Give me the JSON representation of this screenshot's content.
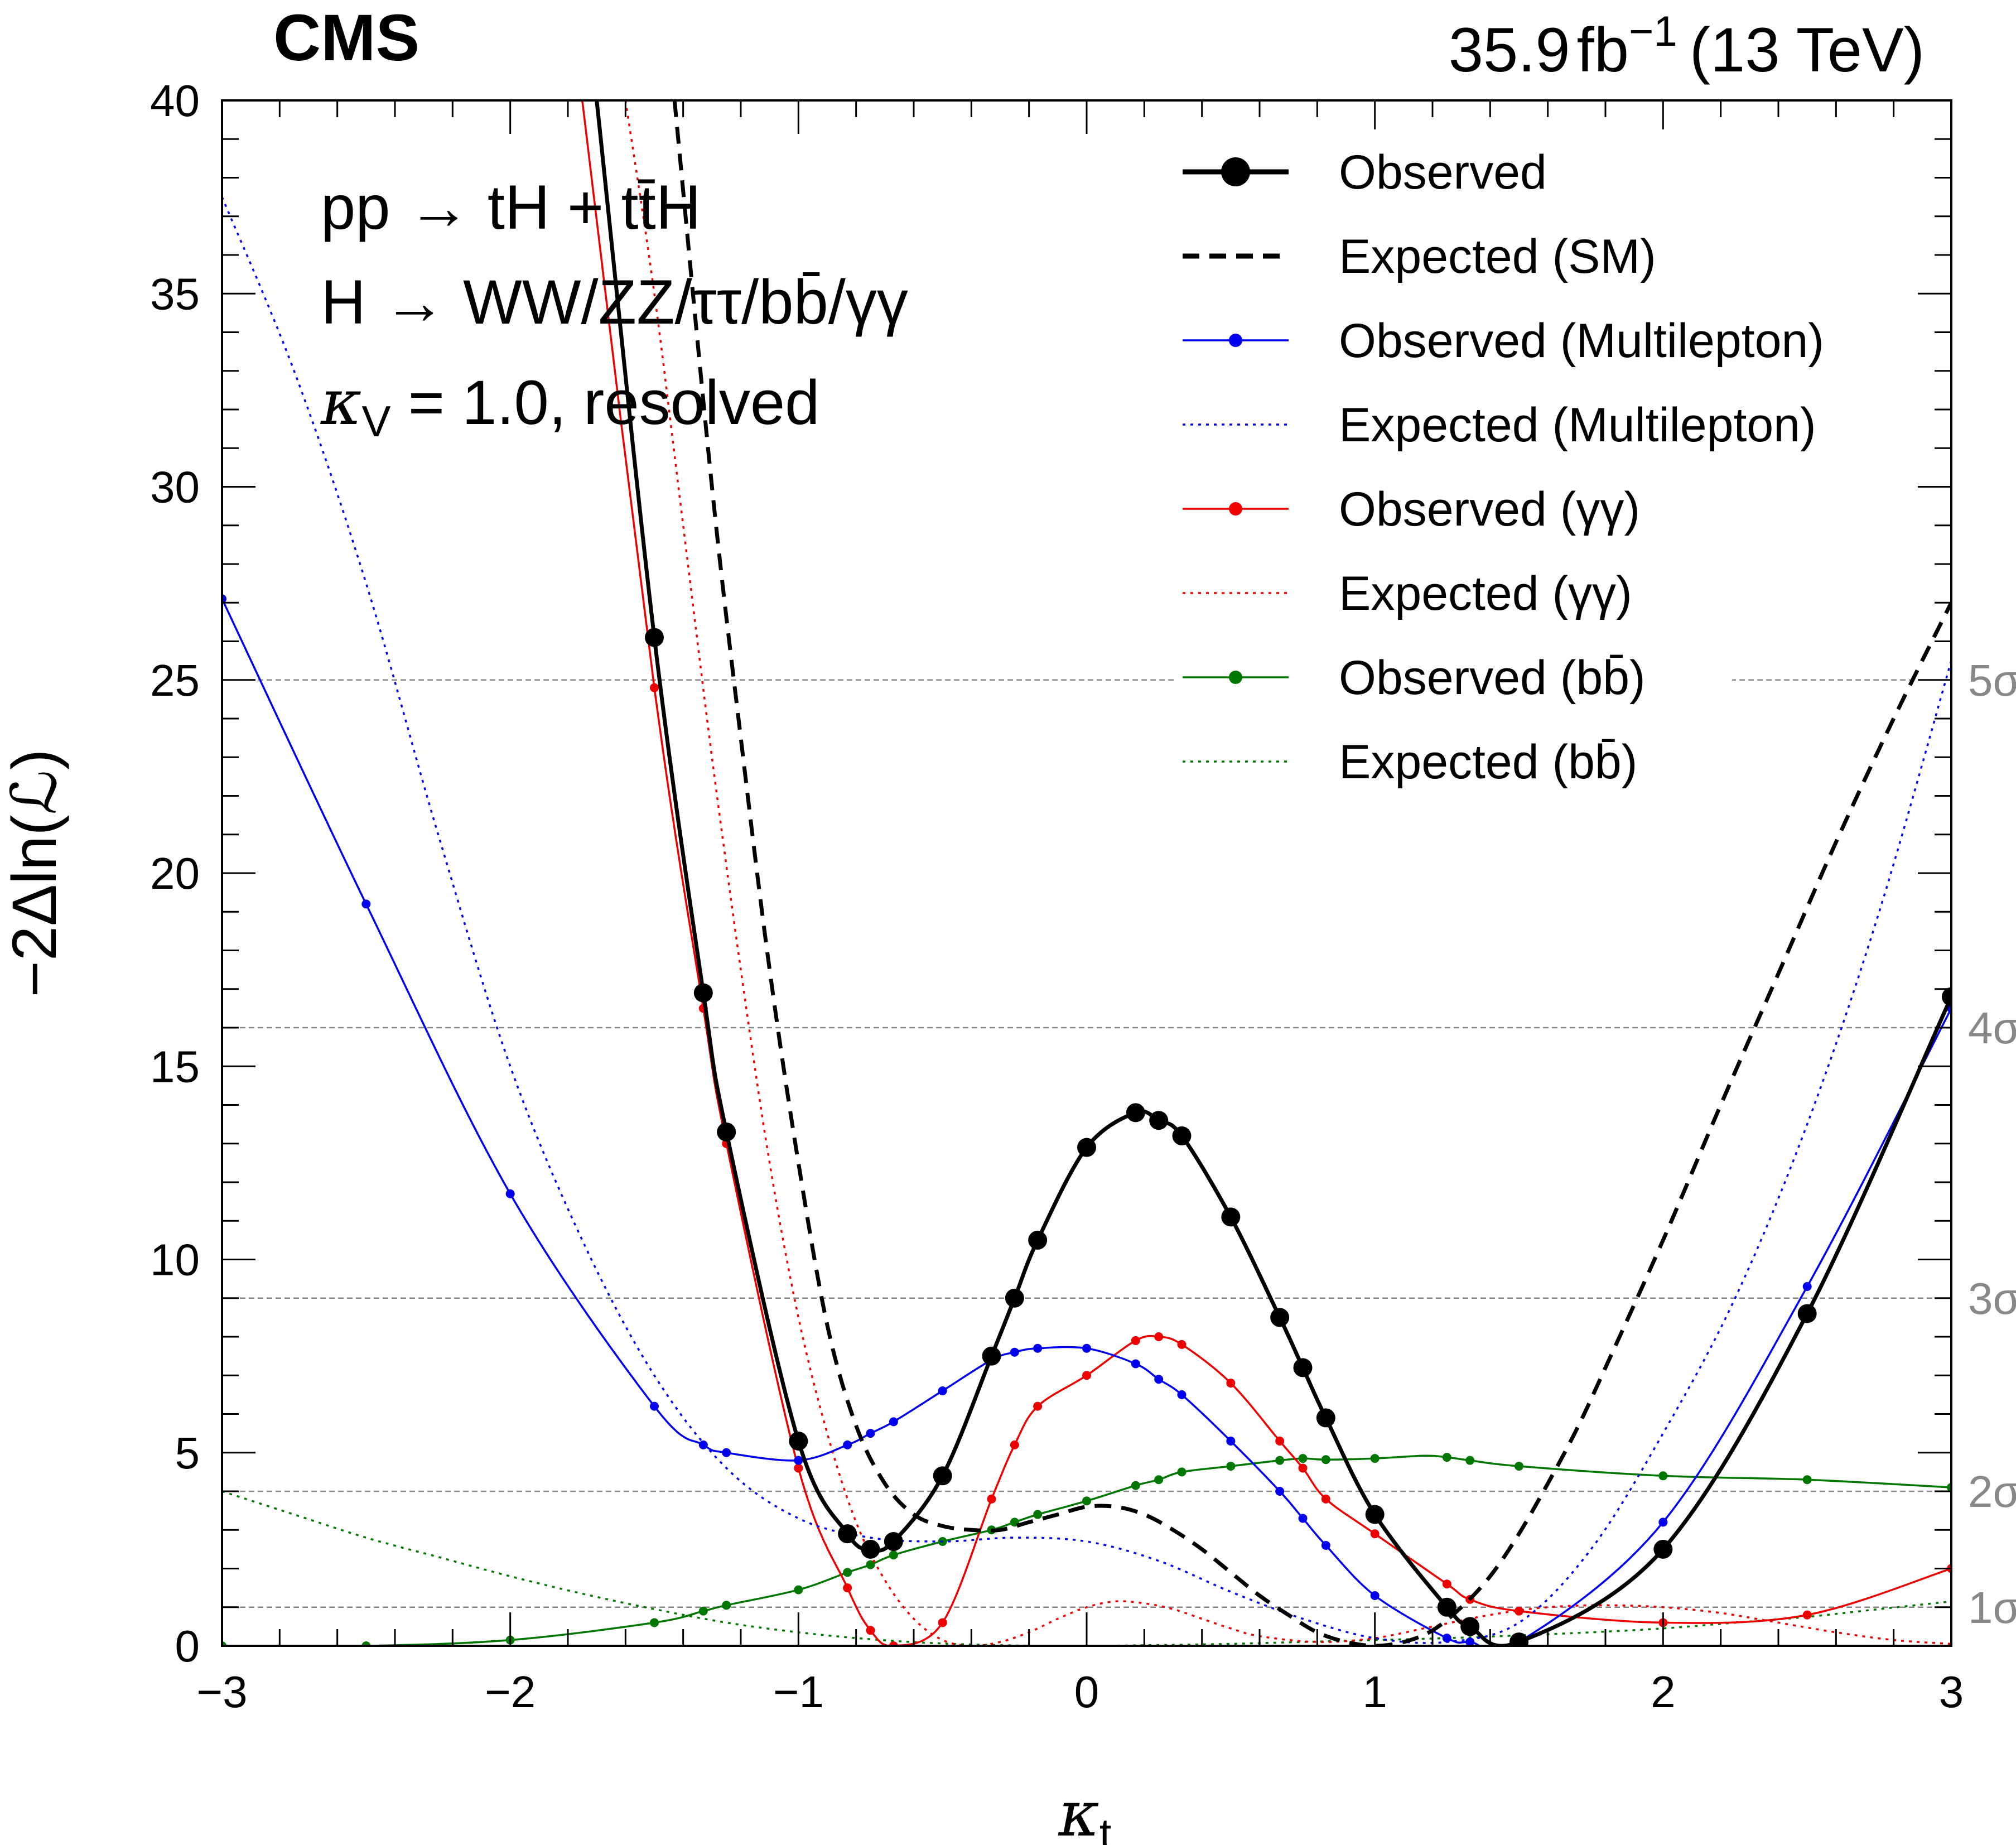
{
  "header": {
    "experiment": "CMS",
    "lumi_value": "35.9",
    "lumi_unit": "fb",
    "lumi_exp": "−1",
    "energy": "(13 TeV)"
  },
  "annotations": {
    "line1": "pp → tH + tt̄H",
    "line2": "H → WW/ZZ/ττ/bb̄/γγ",
    "line3_symbol": "κ",
    "line3_sub": "V",
    "line3_rest": " = 1.0, resolved"
  },
  "chart_data": {
    "type": "line",
    "xlabel_symbol": "κ",
    "xlabel_sub": "t",
    "ylabel": "−2Δln(ℒ)",
    "xlim": [
      -3,
      3
    ],
    "ylim": [
      0,
      40
    ],
    "x_ticks": [
      -3,
      -2,
      -1,
      0,
      1,
      2,
      3
    ],
    "x_tick_labels": [
      "−3",
      "−2",
      "−1",
      "0",
      "1",
      "2",
      "3"
    ],
    "y_ticks": [
      0,
      5,
      10,
      15,
      20,
      25,
      30,
      35,
      40
    ],
    "y_tick_labels": [
      "0",
      "5",
      "10",
      "15",
      "20",
      "25",
      "30",
      "35",
      "40"
    ],
    "sigma_lines": [
      {
        "value": 1,
        "label": "1σ"
      },
      {
        "value": 4,
        "label": "2σ"
      },
      {
        "value": 9,
        "label": "3σ"
      },
      {
        "value": 16,
        "label": "4σ"
      },
      {
        "value": 25,
        "label": "5σ"
      }
    ],
    "legend_position": "top-right",
    "series": [
      {
        "name": "Observed",
        "color": "#000000",
        "style": "solid",
        "width": 7,
        "marker_r": 17,
        "x": [
          -1.7,
          -1.5,
          -1.33,
          -1.25,
          -1.0,
          -0.83,
          -0.75,
          -0.67,
          -0.5,
          -0.33,
          -0.25,
          -0.17,
          0.0,
          0.17,
          0.25,
          0.33,
          0.5,
          0.67,
          0.75,
          0.83,
          1.0,
          1.25,
          1.33,
          1.5,
          2.0,
          2.5,
          3.0
        ],
        "y": [
          40,
          26.1,
          16.9,
          13.3,
          5.3,
          2.9,
          2.5,
          2.7,
          4.4,
          7.5,
          9.0,
          10.5,
          12.9,
          13.8,
          13.6,
          13.2,
          11.1,
          8.5,
          7.2,
          5.9,
          3.4,
          1.0,
          0.5,
          0.1,
          2.5,
          8.6,
          16.8
        ],
        "marker_x": [
          -1.5,
          -1.33,
          -1.25,
          -1.0,
          -0.83,
          -0.75,
          -0.67,
          -0.5,
          -0.33,
          -0.25,
          -0.17,
          0.0,
          0.17,
          0.25,
          0.33,
          0.5,
          0.67,
          0.75,
          0.83,
          1.0,
          1.25,
          1.33,
          1.5,
          2.0,
          2.5,
          3.0
        ]
      },
      {
        "name": "Expected (SM)",
        "color": "#000000",
        "style": "dashed",
        "width": 7,
        "marker_r": 0,
        "x": [
          -1.43,
          -1.3,
          -1.2,
          -1.1,
          -1.0,
          -0.9,
          -0.8,
          -0.7,
          -0.6,
          -0.5,
          -0.4,
          -0.3,
          -0.2,
          -0.1,
          0.0,
          0.1,
          0.2,
          0.3,
          0.4,
          0.5,
          0.6,
          0.7,
          0.8,
          0.9,
          1.0,
          1.1,
          1.2,
          1.3,
          1.4,
          1.5,
          1.6,
          1.7,
          1.8,
          2.0,
          2.2,
          2.4,
          2.6,
          2.8,
          3.0
        ],
        "y": [
          40,
          30.0,
          23.5,
          17.5,
          12.5,
          8.3,
          5.7,
          4.2,
          3.4,
          3.1,
          3.0,
          3.0,
          3.2,
          3.4,
          3.6,
          3.6,
          3.4,
          3.0,
          2.5,
          1.9,
          1.3,
          0.8,
          0.35,
          0.1,
          0.0,
          0.1,
          0.4,
          1.0,
          1.8,
          2.9,
          4.2,
          5.6,
          7.2,
          10.5,
          14.0,
          17.4,
          20.8,
          24.0,
          27.0
        ]
      },
      {
        "name": "Observed (Multilepton)",
        "color": "#0000ee",
        "style": "solid",
        "width": 3.5,
        "marker_r": 8,
        "x": [
          -3.0,
          -2.5,
          -2.0,
          -1.5,
          -1.33,
          -1.25,
          -1.0,
          -0.83,
          -0.75,
          -0.67,
          -0.5,
          -0.33,
          -0.25,
          -0.17,
          0.0,
          0.17,
          0.25,
          0.33,
          0.5,
          0.67,
          0.75,
          0.83,
          1.0,
          1.25,
          1.33,
          1.5,
          2.0,
          2.5,
          3.0
        ],
        "y": [
          27.1,
          19.2,
          11.7,
          6.2,
          5.2,
          5.0,
          4.8,
          5.2,
          5.5,
          5.8,
          6.6,
          7.4,
          7.6,
          7.7,
          7.7,
          7.3,
          6.9,
          6.5,
          5.3,
          4.0,
          3.3,
          2.6,
          1.3,
          0.2,
          0.1,
          0.1,
          3.2,
          9.3,
          16.5
        ],
        "marker_x": [
          -3.0,
          -2.5,
          -2.0,
          -1.5,
          -1.33,
          -1.25,
          -1.0,
          -0.83,
          -0.75,
          -0.67,
          -0.5,
          -0.33,
          -0.25,
          -0.17,
          0.0,
          0.17,
          0.25,
          0.33,
          0.5,
          0.67,
          0.75,
          0.83,
          1.0,
          1.25,
          1.33,
          1.5,
          2.0,
          2.5,
          3.0
        ]
      },
      {
        "name": "Expected (Multilepton)",
        "color": "#0000ee",
        "style": "dotted",
        "width": 3.5,
        "marker_r": 0,
        "x": [
          -3.0,
          -2.75,
          -2.5,
          -2.25,
          -2.0,
          -1.75,
          -1.5,
          -1.25,
          -1.0,
          -0.75,
          -0.5,
          -0.25,
          0.0,
          0.25,
          0.5,
          0.75,
          1.0,
          1.25,
          1.5,
          1.75,
          2.0,
          2.25,
          2.5,
          2.75,
          3.0
        ],
        "y": [
          37.5,
          33.0,
          27.5,
          21.0,
          15.0,
          10.5,
          7.0,
          4.6,
          3.3,
          2.8,
          2.7,
          2.8,
          2.7,
          2.2,
          1.4,
          0.7,
          0.2,
          0.1,
          0.6,
          2.5,
          5.5,
          9.0,
          13.5,
          19.0,
          25.5
        ]
      },
      {
        "name": "Observed (γγ)",
        "color": "#ee0000",
        "style": "solid",
        "width": 3.5,
        "marker_r": 8,
        "x": [
          -1.75,
          -1.5,
          -1.33,
          -1.25,
          -1.0,
          -0.83,
          -0.75,
          -0.67,
          -0.5,
          -0.33,
          -0.25,
          -0.17,
          0.0,
          0.17,
          0.25,
          0.33,
          0.5,
          0.67,
          0.75,
          0.83,
          1.0,
          1.25,
          1.33,
          1.5,
          2.0,
          2.5,
          3.0
        ],
        "y": [
          40,
          24.8,
          16.5,
          13.0,
          4.6,
          1.5,
          0.4,
          0.0,
          0.6,
          3.8,
          5.2,
          6.2,
          7.0,
          7.9,
          8.0,
          7.8,
          6.8,
          5.3,
          4.6,
          3.8,
          2.9,
          1.6,
          1.2,
          0.9,
          0.6,
          0.8,
          2.0
        ],
        "marker_x": [
          -1.5,
          -1.33,
          -1.25,
          -1.0,
          -0.83,
          -0.75,
          -0.67,
          -0.5,
          -0.33,
          -0.25,
          -0.17,
          0.0,
          0.17,
          0.25,
          0.33,
          0.5,
          0.67,
          0.75,
          0.83,
          1.0,
          1.25,
          1.33,
          1.5,
          2.0,
          2.5,
          3.0
        ]
      },
      {
        "name": "Expected (γγ)",
        "color": "#ee0000",
        "style": "dotted",
        "width": 3.5,
        "marker_r": 0,
        "x": [
          -1.6,
          -1.5,
          -1.4,
          -1.3,
          -1.2,
          -1.1,
          -1.0,
          -0.9,
          -0.8,
          -0.7,
          -0.6,
          -0.5,
          -0.4,
          -0.3,
          -0.2,
          -0.1,
          0.0,
          0.1,
          0.2,
          0.3,
          0.4,
          0.5,
          0.6,
          0.8,
          1.0,
          1.2,
          1.4,
          1.6,
          1.8,
          2.0,
          2.2,
          2.4,
          2.6,
          2.8,
          3.0
        ],
        "y": [
          40,
          35.0,
          29.0,
          23.0,
          17.5,
          12.5,
          8.5,
          5.5,
          3.2,
          1.7,
          0.7,
          0.15,
          0.0,
          0.1,
          0.35,
          0.7,
          1.0,
          1.15,
          1.1,
          0.95,
          0.7,
          0.45,
          0.25,
          0.1,
          0.2,
          0.5,
          0.8,
          1.0,
          1.05,
          1.0,
          0.85,
          0.6,
          0.35,
          0.15,
          0.05
        ]
      },
      {
        "name": "Observed (bb̄)",
        "color": "#007700",
        "style": "solid",
        "width": 3.5,
        "marker_r": 8,
        "x": [
          -3.0,
          -2.5,
          -2.0,
          -1.5,
          -1.33,
          -1.25,
          -1.0,
          -0.83,
          -0.75,
          -0.67,
          -0.5,
          -0.33,
          -0.25,
          -0.17,
          0.0,
          0.17,
          0.25,
          0.33,
          0.5,
          0.67,
          0.75,
          0.83,
          1.0,
          1.17,
          1.25,
          1.33,
          1.5,
          2.0,
          2.5,
          3.0
        ],
        "y": [
          0.0,
          0.0,
          0.15,
          0.6,
          0.9,
          1.05,
          1.45,
          1.9,
          2.1,
          2.35,
          2.7,
          3.0,
          3.2,
          3.4,
          3.75,
          4.15,
          4.3,
          4.5,
          4.65,
          4.8,
          4.85,
          4.82,
          4.85,
          4.92,
          4.88,
          4.8,
          4.65,
          4.4,
          4.3,
          4.1
        ],
        "marker_x": [
          -3.0,
          -2.5,
          -2.0,
          -1.5,
          -1.33,
          -1.25,
          -1.0,
          -0.83,
          -0.75,
          -0.67,
          -0.5,
          -0.33,
          -0.25,
          -0.17,
          0.0,
          0.17,
          0.25,
          0.33,
          0.5,
          0.67,
          0.75,
          0.83,
          1.0,
          1.25,
          1.33,
          1.5,
          2.0,
          2.5,
          3.0
        ]
      },
      {
        "name": "Expected (bb̄)",
        "color": "#007700",
        "style": "dotted",
        "width": 3.5,
        "marker_r": 0,
        "x": [
          -3.0,
          -2.75,
          -2.5,
          -2.25,
          -2.0,
          -1.75,
          -1.5,
          -1.25,
          -1.0,
          -0.75,
          -0.5,
          -0.25,
          0.0,
          0.25,
          0.5,
          0.75,
          1.0,
          1.25,
          1.5,
          1.75,
          2.0,
          2.25,
          2.5,
          2.75,
          3.0
        ],
        "y": [
          4.0,
          3.4,
          2.8,
          2.3,
          1.8,
          1.35,
          0.95,
          0.6,
          0.35,
          0.17,
          0.06,
          0.01,
          0.0,
          0.02,
          0.05,
          0.1,
          0.15,
          0.2,
          0.27,
          0.35,
          0.45,
          0.6,
          0.75,
          0.95,
          1.15
        ]
      }
    ]
  }
}
